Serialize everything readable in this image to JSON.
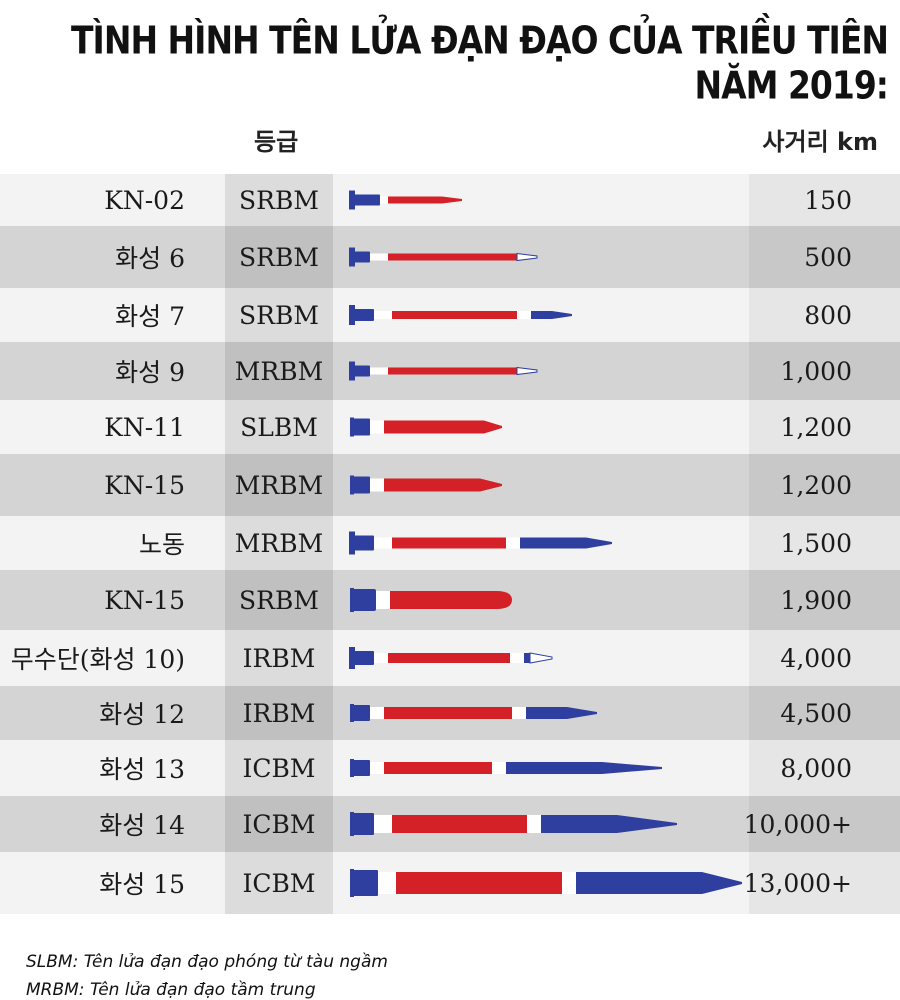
{
  "title": "TÌNH HÌNH TÊN LỬA ĐẠN ĐẠO CỦA TRIỀU TIÊN NĂM 2019:",
  "header": {
    "class": "등급",
    "range": "사거리 km"
  },
  "colors": {
    "red": "#d42128",
    "blue": "#2e3fa0",
    "white": "#ffffff"
  },
  "footnotes": [
    "SLBM: Tên lửa đạn đạo phóng từ tàu ngầm",
    "MRBM: Tên lửa đạn đạo tầm trung"
  ],
  "chart_data": {
    "type": "table",
    "title": "TÌNH HÌNH TÊN LỬA ĐẠN ĐẠO CỦA TRIỀU TIÊN NĂM 2019:",
    "columns": [
      "",
      "등급",
      "사거리 km"
    ],
    "rows": [
      {
        "name": "KN-02",
        "class": "SRBM",
        "range": "150",
        "value": 150
      },
      {
        "name": "화성 6",
        "class": "SRBM",
        "range": "500",
        "value": 500
      },
      {
        "name": "화성 7",
        "class": "SRBM",
        "range": "800",
        "value": 800
      },
      {
        "name": "화성 9",
        "class": "MRBM",
        "range": "1,000",
        "value": 1000
      },
      {
        "name": "KN-11",
        "class": "SLBM",
        "range": "1,200",
        "value": 1200
      },
      {
        "name": "KN-15",
        "class": "MRBM",
        "range": "1,200",
        "value": 1200
      },
      {
        "name": "노동",
        "class": "MRBM",
        "range": "1,500",
        "value": 1500
      },
      {
        "name": "KN-15",
        "class": "SRBM",
        "range": "1,900",
        "value": 1900
      },
      {
        "name": "무수단(화성 10)",
        "class": "IRBM",
        "range": "4,000",
        "value": 4000
      },
      {
        "name": "화성 12",
        "class": "IRBM",
        "range": "4,500",
        "value": 4500
      },
      {
        "name": "화성 13",
        "class": "ICBM",
        "range": "8,000",
        "value": 8000
      },
      {
        "name": "화성 14",
        "class": "ICBM",
        "range": "10,000+",
        "value": 10000
      },
      {
        "name": "화성 15",
        "class": "ICBM",
        "range": "13,000+",
        "value": 13000
      }
    ]
  }
}
